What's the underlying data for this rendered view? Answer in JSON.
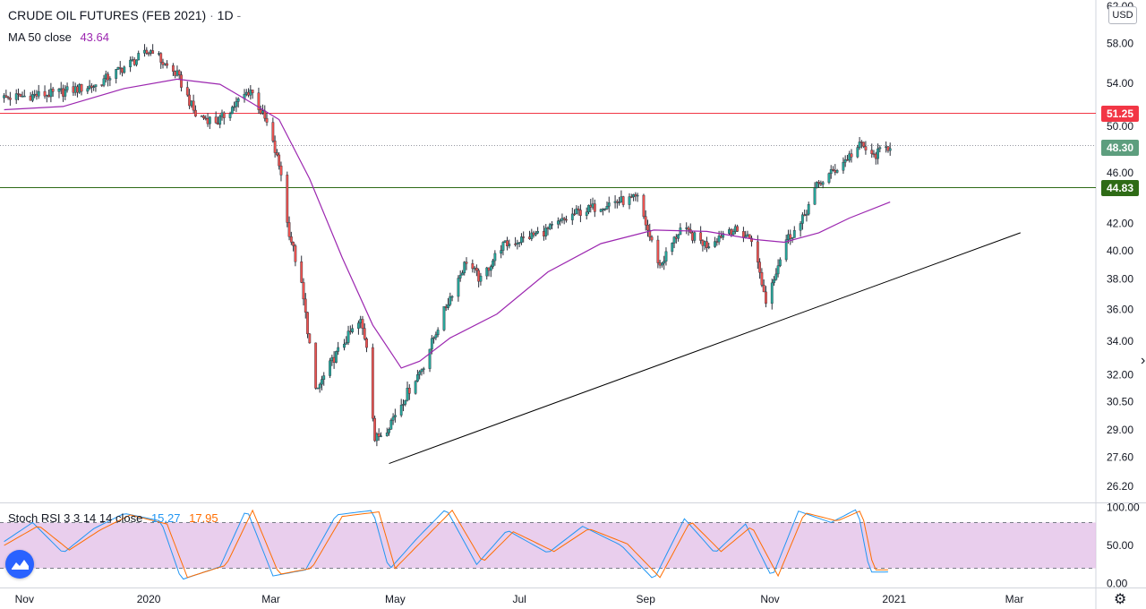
{
  "header": {
    "title": "CRUDE OIL FUTURES (FEB 2021)",
    "separator": "·",
    "interval": "1D",
    "tail": "-",
    "currency": "USD"
  },
  "ma_legend": {
    "label": "MA 50 close",
    "value": "43.64",
    "color": "#9c27b0"
  },
  "rsi_legend": {
    "label": "Stoch RSI 3 3 14 14 close",
    "k_value": "15.27",
    "d_value": "17.95",
    "k_color": "#2196f3",
    "d_color": "#ff6d00"
  },
  "price_badges": {
    "resistance": {
      "text": "51.25",
      "color": "#f23645"
    },
    "last": {
      "text": "48.30",
      "color": "#5d9e7e"
    },
    "support": {
      "text": "44.83",
      "color": "#2e6b16"
    }
  },
  "chart_data": [
    {
      "type": "candlestick",
      "title": "CRUDE OIL FUTURES (FEB 2021)",
      "interval": "1D",
      "y_axis": {
        "ticks": [
          "26.20",
          "27.60",
          "29.00",
          "30.50",
          "32.00",
          "34.00",
          "36.00",
          "38.00",
          "40.00",
          "42.00",
          "46.00",
          "50.00",
          "54.00",
          "58.00",
          "62.00"
        ],
        "ylim": [
          25.5,
          62.5
        ],
        "scale": "log"
      },
      "x_axis": {
        "ticks": [
          "Nov",
          "2020",
          "Mar",
          "May",
          "Jul",
          "Sep",
          "Nov",
          "2021",
          "Mar"
        ],
        "range": [
          "2019-10-20",
          "2021-04-10"
        ]
      },
      "colors": {
        "up": "#26a69a",
        "down": "#ef5350",
        "ma": "#9c27b0"
      },
      "anchors": [
        [
          "2019-10-22",
          52.6
        ],
        [
          "2019-11-15",
          53.0
        ],
        [
          "2019-12-06",
          53.8
        ],
        [
          "2019-12-20",
          55.6
        ],
        [
          "2020-01-03",
          57.4
        ],
        [
          "2020-01-08",
          56.0
        ],
        [
          "2020-01-15",
          54.8
        ],
        [
          "2020-01-24",
          51.0
        ],
        [
          "2020-02-04",
          50.4
        ],
        [
          "2020-02-20",
          53.4
        ],
        [
          "2020-02-28",
          50.2
        ],
        [
          "2020-03-06",
          46.0
        ],
        [
          "2020-03-09",
          42.0
        ],
        [
          "2020-03-16",
          37.5
        ],
        [
          "2020-03-23",
          31.0
        ],
        [
          "2020-04-01",
          33.0
        ],
        [
          "2020-04-09",
          34.5
        ],
        [
          "2020-04-14",
          35.2
        ],
        [
          "2020-04-17",
          33.8
        ],
        [
          "2020-04-21",
          28.5
        ],
        [
          "2020-04-27",
          29.1
        ],
        [
          "2020-05-05",
          30.6
        ],
        [
          "2020-05-15",
          32.6
        ],
        [
          "2020-05-26",
          36.2
        ],
        [
          "2020-06-05",
          39.3
        ],
        [
          "2020-06-12",
          37.9
        ],
        [
          "2020-06-22",
          40.3
        ],
        [
          "2020-07-15",
          41.5
        ],
        [
          "2020-07-29",
          42.8
        ],
        [
          "2020-08-15",
          43.6
        ],
        [
          "2020-08-28",
          43.9
        ],
        [
          "2020-09-03",
          41.0
        ],
        [
          "2020-09-08",
          38.9
        ],
        [
          "2020-09-18",
          41.6
        ],
        [
          "2020-10-01",
          40.4
        ],
        [
          "2020-10-12",
          41.6
        ],
        [
          "2020-10-23",
          40.9
        ],
        [
          "2020-10-30",
          36.5
        ],
        [
          "2020-11-09",
          40.8
        ],
        [
          "2020-11-16",
          41.9
        ],
        [
          "2020-11-24",
          44.9
        ],
        [
          "2020-12-04",
          46.4
        ],
        [
          "2020-12-16",
          48.4
        ],
        [
          "2020-12-21",
          47.3
        ],
        [
          "2020-12-30",
          48.3
        ]
      ],
      "ma50": [
        [
          "2019-10-22",
          51.5
        ],
        [
          "2019-11-20",
          51.8
        ],
        [
          "2019-12-20",
          53.5
        ],
        [
          "2020-01-15",
          54.4
        ],
        [
          "2020-02-05",
          53.9
        ],
        [
          "2020-02-20",
          52.2
        ],
        [
          "2020-03-05",
          50.6
        ],
        [
          "2020-03-20",
          45.5
        ],
        [
          "2020-04-05",
          39.5
        ],
        [
          "2020-04-20",
          35.0
        ],
        [
          "2020-05-04",
          32.4
        ],
        [
          "2020-05-13",
          32.8
        ],
        [
          "2020-05-28",
          34.2
        ],
        [
          "2020-06-20",
          35.7
        ],
        [
          "2020-07-15",
          38.5
        ],
        [
          "2020-08-10",
          40.5
        ],
        [
          "2020-09-05",
          41.5
        ],
        [
          "2020-10-01",
          41.4
        ],
        [
          "2020-10-25",
          40.8
        ],
        [
          "2020-11-08",
          40.6
        ],
        [
          "2020-11-25",
          41.3
        ],
        [
          "2020-12-10",
          42.4
        ],
        [
          "2020-12-30",
          43.64
        ]
      ],
      "trendline": {
        "from": [
          "2020-04-28",
          27.3
        ],
        "to": [
          "2021-03-04",
          41.3
        ],
        "color": "#000000"
      },
      "horizontal_lines": [
        {
          "price": 51.25,
          "color": "#f23645"
        },
        {
          "price": 48.3,
          "color": "#9598a1",
          "style": "dotted"
        },
        {
          "price": 44.83,
          "color": "#2e6b16"
        }
      ]
    },
    {
      "type": "line",
      "title": "Stoch RSI 3 3 14 14 close",
      "y_axis": {
        "ticks": [
          "0.00",
          "50.00",
          "100.00"
        ],
        "ylim": [
          -4,
          104
        ],
        "band": [
          20,
          80
        ],
        "band_color": "#e1bee7"
      },
      "series": [
        {
          "name": "K",
          "color": "#2196f3",
          "values": [
            [
              "2019-10-22",
              55
            ],
            [
              "2019-11-05",
              80
            ],
            [
              "2019-11-20",
              40
            ],
            [
              "2019-12-05",
              72
            ],
            [
              "2019-12-20",
              92
            ],
            [
              "2020-01-07",
              82
            ],
            [
              "2020-01-17",
              5
            ],
            [
              "2020-02-05",
              22
            ],
            [
              "2020-02-18",
              98
            ],
            [
              "2020-03-02",
              10
            ],
            [
              "2020-03-18",
              18
            ],
            [
              "2020-04-02",
              90
            ],
            [
              "2020-04-20",
              96
            ],
            [
              "2020-04-28",
              18
            ],
            [
              "2020-05-12",
              60
            ],
            [
              "2020-05-26",
              98
            ],
            [
              "2020-06-10",
              25
            ],
            [
              "2020-06-25",
              70
            ],
            [
              "2020-07-15",
              40
            ],
            [
              "2020-08-01",
              75
            ],
            [
              "2020-08-20",
              50
            ],
            [
              "2020-09-05",
              5
            ],
            [
              "2020-09-20",
              85
            ],
            [
              "2020-10-05",
              40
            ],
            [
              "2020-10-20",
              78
            ],
            [
              "2020-11-02",
              8
            ],
            [
              "2020-11-15",
              95
            ],
            [
              "2020-12-01",
              80
            ],
            [
              "2020-12-14",
              98
            ],
            [
              "2020-12-20",
              15
            ],
            [
              "2020-12-30",
              15.27
            ]
          ]
        },
        {
          "name": "D",
          "color": "#ff6d00",
          "values": [
            [
              "2019-10-22",
              50
            ],
            [
              "2019-11-08",
              76
            ],
            [
              "2019-11-23",
              44
            ],
            [
              "2019-12-08",
              70
            ],
            [
              "2019-12-23",
              90
            ],
            [
              "2020-01-10",
              78
            ],
            [
              "2020-01-20",
              8
            ],
            [
              "2020-02-08",
              24
            ],
            [
              "2020-02-21",
              96
            ],
            [
              "2020-03-05",
              12
            ],
            [
              "2020-03-21",
              20
            ],
            [
              "2020-04-05",
              88
            ],
            [
              "2020-04-23",
              94
            ],
            [
              "2020-05-01",
              20
            ],
            [
              "2020-05-15",
              58
            ],
            [
              "2020-05-29",
              96
            ],
            [
              "2020-06-13",
              28
            ],
            [
              "2020-06-28",
              68
            ],
            [
              "2020-07-18",
              42
            ],
            [
              "2020-08-04",
              72
            ],
            [
              "2020-08-23",
              52
            ],
            [
              "2020-09-08",
              8
            ],
            [
              "2020-09-23",
              82
            ],
            [
              "2020-10-08",
              42
            ],
            [
              "2020-10-23",
              75
            ],
            [
              "2020-11-05",
              10
            ],
            [
              "2020-11-18",
              93
            ],
            [
              "2020-12-04",
              82
            ],
            [
              "2020-12-16",
              96
            ],
            [
              "2020-12-22",
              18
            ],
            [
              "2020-12-30",
              17.95
            ]
          ]
        }
      ]
    }
  ]
}
